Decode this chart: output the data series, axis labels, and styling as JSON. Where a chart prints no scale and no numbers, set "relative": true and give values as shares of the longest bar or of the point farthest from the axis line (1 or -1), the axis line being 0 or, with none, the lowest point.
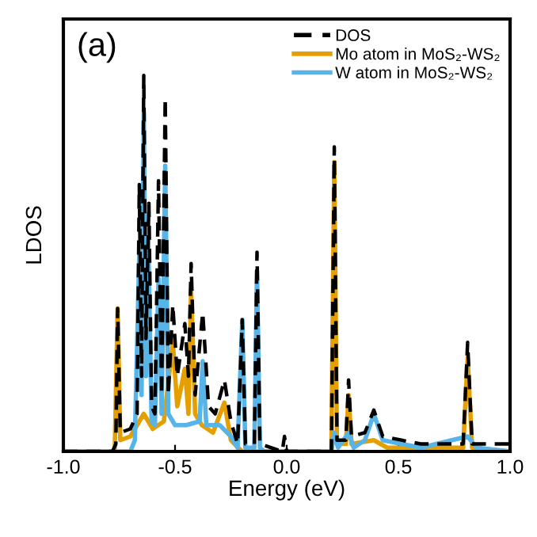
{
  "chart_data": {
    "type": "line",
    "relative": true,
    "xlabel": "Energy (eV)",
    "ylabel": "LDOS",
    "annotations": [
      "(a)"
    ],
    "xlim": [
      -1.0,
      1.0
    ],
    "xticks": [
      {
        "value": -1.0,
        "label": "-1.0"
      },
      {
        "value": -0.5,
        "label": "-0.5"
      },
      {
        "value": 0.0,
        "label": "0.0"
      },
      {
        "value": 0.5,
        "label": "0.5"
      },
      {
        "value": 1.0,
        "label": "1.0"
      }
    ],
    "tick_labels": "x",
    "grid": false,
    "legend": "top right",
    "marker": "none",
    "series": [
      {
        "name": "DOS",
        "color": "#000000",
        "line_style": "dashed",
        "x": [
          -1.0,
          -0.78,
          -0.765,
          -0.757,
          -0.745,
          -0.7,
          -0.67,
          -0.66,
          -0.65,
          -0.64,
          -0.63,
          -0.617,
          -0.605,
          -0.59,
          -0.574,
          -0.56,
          -0.544,
          -0.53,
          -0.51,
          -0.49,
          -0.456,
          -0.44,
          -0.428,
          -0.41,
          -0.376,
          -0.35,
          -0.32,
          -0.279,
          -0.25,
          -0.22,
          -0.199,
          -0.185,
          -0.145,
          -0.133,
          -0.12,
          -0.02,
          -0.01,
          0.0,
          0.2,
          0.213,
          0.225,
          0.265,
          0.277,
          0.29,
          0.35,
          0.39,
          0.43,
          0.6,
          0.79,
          0.81,
          0.83,
          1.0
        ],
        "values": [
          0,
          0,
          0.02,
          0.38,
          0.05,
          0.06,
          0.1,
          0.71,
          0.2,
          1.0,
          0.3,
          0.66,
          0.12,
          0.1,
          0.72,
          0.15,
          0.94,
          0.15,
          0.39,
          0.2,
          0.34,
          0.2,
          0.5,
          0.15,
          0.37,
          0.12,
          0.1,
          0.19,
          0.08,
          0.02,
          0.35,
          0.02,
          0.02,
          0.53,
          0.02,
          0,
          0.04,
          0,
          0,
          0.81,
          0.03,
          0.03,
          0.19,
          0.04,
          0.05,
          0.11,
          0.04,
          0.02,
          0.02,
          0.29,
          0.02,
          0.02
        ]
      },
      {
        "name": "Mo atom in MoS₂-WS₂",
        "color": "#e69f00",
        "line_style": "solid",
        "x": [
          -1.0,
          -0.77,
          -0.757,
          -0.745,
          -0.7,
          -0.66,
          -0.64,
          -0.6,
          -0.55,
          -0.51,
          -0.49,
          -0.456,
          -0.44,
          -0.428,
          -0.41,
          -0.38,
          -0.33,
          -0.279,
          -0.25,
          -0.2,
          0.2,
          0.213,
          0.225,
          0.265,
          0.277,
          0.29,
          0.39,
          0.45,
          0.79,
          0.81,
          0.83,
          1.0
        ],
        "values": [
          0,
          0,
          0.38,
          0.03,
          0.04,
          0.08,
          0.1,
          0.06,
          0.08,
          0.29,
          0.12,
          0.22,
          0.1,
          0.43,
          0.1,
          0.07,
          0.05,
          0.13,
          0.03,
          0,
          0,
          0.77,
          0.02,
          0.02,
          0.15,
          0.02,
          0.03,
          0.01,
          0.01,
          0.25,
          0.01,
          0
        ]
      },
      {
        "name": "W atom in MoS₂-WS₂",
        "color": "#56b4e9",
        "line_style": "solid",
        "x": [
          -1.0,
          -0.7,
          -0.68,
          -0.66,
          -0.65,
          -0.64,
          -0.63,
          -0.62,
          -0.605,
          -0.59,
          -0.574,
          -0.56,
          -0.544,
          -0.53,
          -0.5,
          -0.45,
          -0.39,
          -0.376,
          -0.36,
          -0.3,
          -0.25,
          -0.22,
          -0.199,
          -0.185,
          -0.145,
          -0.133,
          -0.12,
          -0.1,
          0.2,
          0.213,
          0.23,
          0.277,
          0.3,
          0.35,
          0.39,
          0.43,
          0.6,
          0.81,
          0.85,
          1.0
        ],
        "values": [
          0,
          0,
          0.03,
          0.53,
          0.15,
          0.9,
          0.2,
          0.57,
          0.08,
          0.07,
          0.46,
          0.1,
          0.76,
          0.1,
          0.07,
          0.07,
          0.08,
          0.24,
          0.07,
          0.07,
          0.04,
          0.01,
          0.35,
          0.01,
          0.01,
          0.48,
          0.01,
          0,
          0,
          0.05,
          0.01,
          0.05,
          0.01,
          0.03,
          0.1,
          0.03,
          0.01,
          0.04,
          0.01,
          0
        ]
      }
    ]
  }
}
